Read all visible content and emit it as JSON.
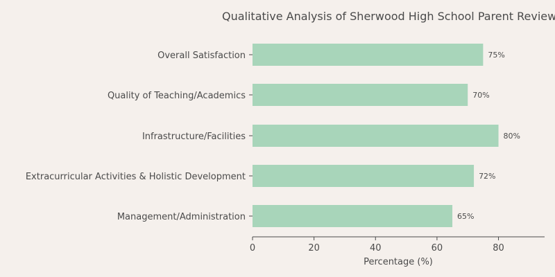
{
  "chart_data": {
    "type": "bar",
    "orientation": "horizontal",
    "title": "Qualitative Analysis of Sherwood High School Parent Reviews",
    "xlabel": "Percentage (%)",
    "ylabel": "",
    "categories": [
      "Overall Satisfaction",
      "Quality of Teaching/Academics",
      "Infrastructure/Facilities",
      "Extracurricular Activities & Holistic Development",
      "Management/Administration"
    ],
    "values": [
      75,
      70,
      80,
      72,
      65
    ],
    "data_labels": [
      "75%",
      "70%",
      "80%",
      "72%",
      "65%"
    ],
    "xlim": [
      0,
      95
    ],
    "xticks": [
      0,
      20,
      40,
      60,
      80
    ],
    "xtick_labels": [
      "0",
      "20",
      "40",
      "60",
      "80"
    ],
    "grid": false,
    "bar_color": "#a8d5ba",
    "background_color": "#f5f0ec",
    "text_color": "#4a4a4a"
  }
}
